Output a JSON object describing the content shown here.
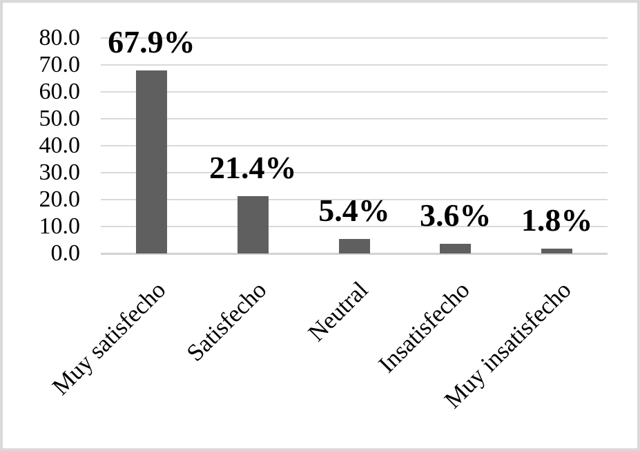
{
  "chart_data": {
    "type": "bar",
    "title": "",
    "xlabel": "",
    "ylabel": "",
    "categories": [
      "Muy satisfecho",
      "Satisfecho",
      "Neutral",
      "Insatisfecho",
      "Muy insatisfecho"
    ],
    "values": [
      67.9,
      21.4,
      5.4,
      3.6,
      1.8
    ],
    "value_labels": [
      "67.9%",
      "21.4%",
      "5.4%",
      "3.6%",
      "1.8%"
    ],
    "ylim": [
      0,
      80
    ],
    "ytick_step": 10,
    "ytick_labels": [
      "80.0",
      "70.0",
      "60.0",
      "50.0",
      "40.0",
      "30.0",
      "20.0",
      "10.0",
      "0.0"
    ],
    "grid": true,
    "legend": false,
    "category_label_rotation_deg": 45,
    "bar_color": "#5f5f5f",
    "gridline_color": "#d9d9d9",
    "axis_line_color": "#d2d2d2",
    "text_color": "#000000"
  },
  "frame": {
    "border_color": "#d9d9d9",
    "background_color": "#ffffff"
  }
}
